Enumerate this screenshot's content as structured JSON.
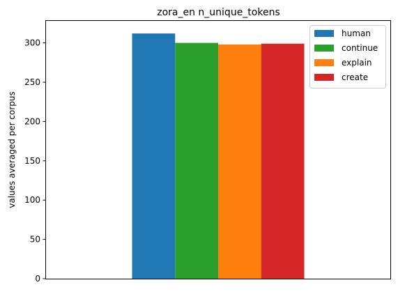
{
  "chart_data": {
    "type": "bar",
    "title": "zora_en n_unique_tokens",
    "xlabel": "",
    "ylabel": "values averaged per corpus",
    "ylim": [
      0,
      328
    ],
    "yticks": [
      0,
      50,
      100,
      150,
      200,
      250,
      300
    ],
    "categories": [
      ""
    ],
    "series": [
      {
        "name": "human",
        "values": [
          312
        ],
        "color": "#1f77b4"
      },
      {
        "name": "continue",
        "values": [
          300
        ],
        "color": "#2ca02c"
      },
      {
        "name": "explain",
        "values": [
          298
        ],
        "color": "#ff7f0e"
      },
      {
        "name": "create",
        "values": [
          299
        ],
        "color": "#d62728"
      }
    ],
    "grid": false,
    "legend": "top-right"
  }
}
